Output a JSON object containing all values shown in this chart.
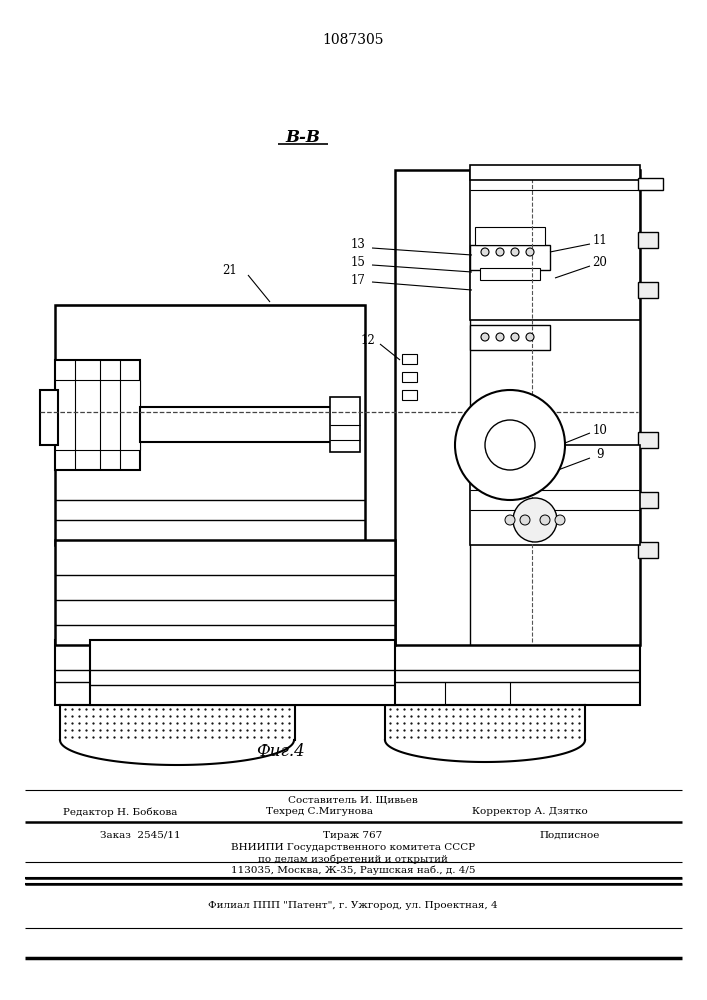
{
  "patent_number": "1087305",
  "section_label": "В-В",
  "fig_label": "Фиг.4",
  "footer_sestavitel": "Составитель И. Щивьев",
  "footer_editor": "Редактор Н. Бобкова",
  "footer_tehred": "Техред С.Мигунова",
  "footer_korrektor": "Корректор А. Дзятко",
  "footer_zakaz": "Заказ  2545/11",
  "footer_tirazh": "Тираж 767",
  "footer_podpisnoe": "Подписное",
  "footer_vniipи": "ВНИИПИ Государственного комитета СССР",
  "footer_po_delam": "по делам изобретений и открытий",
  "footer_address": "113035, Москва, Ж-35, Раушская наб., д. 4/5",
  "footer_filial": "Филиал ППП \"Патент\", г. Ужгород, ул. Проектная, 4"
}
